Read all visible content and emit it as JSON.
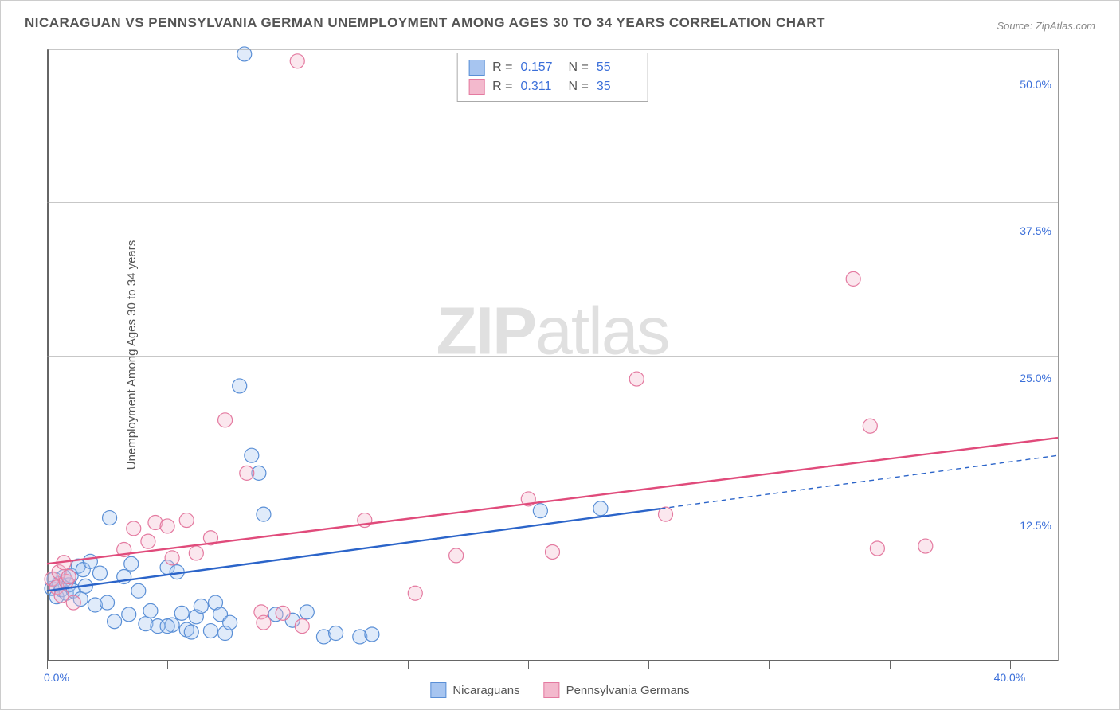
{
  "title": "NICARAGUAN VS PENNSYLVANIA GERMAN UNEMPLOYMENT AMONG AGES 30 TO 34 YEARS CORRELATION CHART",
  "source_label": "Source: ZipAtlas.com",
  "y_axis_label": "Unemployment Among Ages 30 to 34 years",
  "watermark_bold": "ZIP",
  "watermark_thin": "atlas",
  "chart": {
    "type": "scatter-with-regression",
    "xlim": [
      0,
      42
    ],
    "ylim": [
      0,
      52
    ],
    "background_color": "#ffffff",
    "grid_color": "#999999",
    "axis_color": "#666666",
    "tick_label_color": "#3b6fd9",
    "x_ticks_major": [
      0,
      5,
      10,
      15,
      20,
      25,
      30,
      35,
      40
    ],
    "x_tick_labels": [
      {
        "x": 0,
        "text": "0.0%"
      },
      {
        "x": 40,
        "text": "40.0%"
      }
    ],
    "y_gridlines": [
      13,
      26,
      39,
      52
    ],
    "y_tick_labels": [
      {
        "y": 12.5,
        "text": "12.5%"
      },
      {
        "y": 25.0,
        "text": "25.0%"
      },
      {
        "y": 37.5,
        "text": "37.5%"
      },
      {
        "y": 50.0,
        "text": "50.0%"
      }
    ],
    "marker_radius": 9,
    "marker_stroke_width": 1.2,
    "marker_fill_opacity": 0.35,
    "line_width": 2.4,
    "series": [
      {
        "name": "Nicaraguans",
        "color_fill": "#a7c5f0",
        "color_stroke": "#5a8fd6",
        "line_color": "#2b64c9",
        "R": "0.157",
        "N": "55",
        "regression": {
          "x1": 0,
          "y1": 6.0,
          "x2": 25.5,
          "y2": 13.2,
          "extend_x2": 42,
          "extend_y2": 17.5,
          "solid_until_x": 25.5
        },
        "points": [
          [
            0.2,
            6.2
          ],
          [
            0.3,
            7.0
          ],
          [
            0.4,
            5.5
          ],
          [
            0.5,
            6.6
          ],
          [
            0.6,
            6.1
          ],
          [
            0.7,
            7.2
          ],
          [
            0.8,
            5.8
          ],
          [
            0.9,
            6.5
          ],
          [
            1.0,
            7.3
          ],
          [
            1.1,
            6.0
          ],
          [
            1.3,
            8.1
          ],
          [
            1.4,
            5.3
          ],
          [
            1.5,
            7.8
          ],
          [
            1.6,
            6.4
          ],
          [
            1.8,
            8.5
          ],
          [
            2.0,
            4.8
          ],
          [
            2.2,
            7.5
          ],
          [
            2.5,
            5.0
          ],
          [
            2.6,
            12.2
          ],
          [
            2.8,
            3.4
          ],
          [
            3.2,
            7.2
          ],
          [
            3.4,
            4.0
          ],
          [
            3.5,
            8.3
          ],
          [
            3.8,
            6.0
          ],
          [
            4.1,
            3.2
          ],
          [
            4.3,
            4.3
          ],
          [
            4.6,
            3.0
          ],
          [
            5.0,
            8.0
          ],
          [
            5.2,
            3.1
          ],
          [
            5.0,
            3.0
          ],
          [
            5.4,
            7.6
          ],
          [
            5.6,
            4.1
          ],
          [
            5.8,
            2.7
          ],
          [
            6.0,
            2.5
          ],
          [
            6.2,
            3.8
          ],
          [
            6.4,
            4.7
          ],
          [
            6.8,
            2.6
          ],
          [
            7.0,
            5.0
          ],
          [
            7.2,
            4.0
          ],
          [
            7.4,
            2.4
          ],
          [
            7.6,
            3.3
          ],
          [
            8.0,
            23.4
          ],
          [
            8.2,
            51.6
          ],
          [
            8.5,
            17.5
          ],
          [
            8.8,
            16.0
          ],
          [
            9.0,
            12.5
          ],
          [
            9.5,
            4.0
          ],
          [
            10.2,
            3.5
          ],
          [
            10.8,
            4.2
          ],
          [
            11.5,
            2.1
          ],
          [
            12.0,
            2.4
          ],
          [
            13.0,
            2.1
          ],
          [
            13.5,
            2.3
          ],
          [
            20.5,
            12.8
          ],
          [
            23.0,
            13.0
          ]
        ]
      },
      {
        "name": "Pennsylvania Germans",
        "color_fill": "#f3b9cd",
        "color_stroke": "#e47aa0",
        "line_color": "#e04b7b",
        "R": "0.311",
        "N": "35",
        "regression": {
          "x1": 0,
          "y1": 8.3,
          "x2": 42,
          "y2": 19.0,
          "solid_until_x": 42
        },
        "points": [
          [
            0.2,
            7.0
          ],
          [
            0.4,
            6.3
          ],
          [
            0.5,
            7.6
          ],
          [
            0.6,
            5.6
          ],
          [
            0.7,
            8.4
          ],
          [
            0.8,
            6.8
          ],
          [
            0.9,
            7.2
          ],
          [
            1.1,
            5.0
          ],
          [
            3.2,
            9.5
          ],
          [
            3.6,
            11.3
          ],
          [
            4.2,
            10.2
          ],
          [
            4.5,
            11.8
          ],
          [
            5.0,
            11.5
          ],
          [
            5.2,
            8.8
          ],
          [
            5.8,
            12.0
          ],
          [
            6.2,
            9.2
          ],
          [
            6.8,
            10.5
          ],
          [
            7.4,
            20.5
          ],
          [
            8.3,
            16.0
          ],
          [
            8.9,
            4.2
          ],
          [
            9.0,
            3.3
          ],
          [
            9.8,
            4.1
          ],
          [
            10.4,
            51.0
          ],
          [
            10.6,
            3.0
          ],
          [
            13.2,
            12.0
          ],
          [
            15.3,
            5.8
          ],
          [
            17.0,
            9.0
          ],
          [
            20.0,
            13.8
          ],
          [
            21.0,
            9.3
          ],
          [
            24.5,
            24.0
          ],
          [
            25.7,
            12.5
          ],
          [
            33.5,
            32.5
          ],
          [
            34.2,
            20.0
          ],
          [
            34.5,
            9.6
          ],
          [
            36.5,
            9.8
          ]
        ]
      }
    ]
  },
  "corr_legend_labels": {
    "R": "R =",
    "N": "N ="
  },
  "bottom_legend_labels": [
    "Nicaraguans",
    "Pennsylvania Germans"
  ]
}
